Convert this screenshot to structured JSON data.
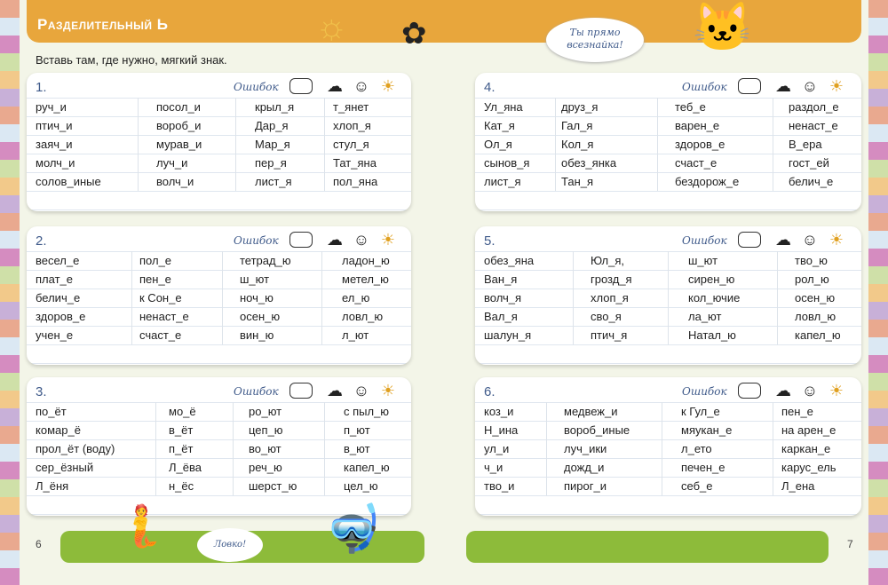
{
  "header": {
    "title": "Разделительный Ь",
    "instruction": "Вставь там, где нужно, мягкий знак.",
    "speech_top": "Ты прямо всезнайка!",
    "speech_bottom": "Ловко!"
  },
  "page_numbers": {
    "left": "6",
    "right": "7"
  },
  "error_label": "Ошибок",
  "colors": {
    "header": "#e8a63c",
    "footer": "#8dbb3a",
    "blank": "#7cc0d8"
  },
  "exercises": [
    {
      "number": "1.",
      "columns": [
        [
          "руч_и",
          "птич_и",
          "заяч_и",
          "молч_и",
          "солов_иные"
        ],
        [
          "посол_и",
          "вороб_и",
          "мурав_и",
          "луч_и",
          "волч_и"
        ],
        [
          "крыл_я",
          "Дар_я",
          "Мар_я",
          "пер_я",
          "лист_я"
        ],
        [
          "т_янет",
          "хлоп_я",
          "стул_я",
          "Тат_яна",
          "пол_яна"
        ]
      ]
    },
    {
      "number": "2.",
      "columns": [
        [
          "весел_е",
          "плат_е",
          "белич_е",
          "здоров_е",
          "учен_е"
        ],
        [
          "пол_е",
          "пен_е",
          "к Сон_е",
          "ненаст_е",
          "счаст_е"
        ],
        [
          "тетрад_ю",
          "ш_ют",
          "ноч_ю",
          "осен_ю",
          "вин_ю"
        ],
        [
          "ладон_ю",
          "метел_ю",
          "ел_ю",
          "ловл_ю",
          "л_ют"
        ]
      ]
    },
    {
      "number": "3.",
      "columns": [
        [
          "по_ёт",
          "комар_ё",
          "прол_ёт (воду)",
          "сер_ёзный",
          "Л_ёня"
        ],
        [
          "мо_ё",
          "в_ёт",
          "п_ёт",
          "Л_ёва",
          "н_ёс"
        ],
        [
          "ро_ют",
          "цеп_ю",
          "во_ют",
          "реч_ю",
          "шерст_ю"
        ],
        [
          "с пыл_ю",
          "п_ют",
          "в_ют",
          "капел_ю",
          "цел_ю"
        ]
      ]
    },
    {
      "number": "4.",
      "columns": [
        [
          "Ул_яна",
          "Кат_я",
          "Ол_я",
          "сынов_я",
          "лист_я"
        ],
        [
          "друз_я",
          "Гал_я",
          "Кол_я",
          "обез_янка",
          "Тан_я"
        ],
        [
          "теб_е",
          "варен_е",
          "здоров_е",
          "счаст_е",
          "бездорож_е"
        ],
        [
          "раздол_е",
          "ненаст_е",
          "В_ера",
          "гост_ей",
          "белич_е"
        ]
      ]
    },
    {
      "number": "5.",
      "columns": [
        [
          "обез_яна",
          "Ван_я",
          "волч_я",
          "Вал_я",
          "шалун_я"
        ],
        [
          "Юл_я,",
          "грозд_я",
          "хлоп_я",
          "сво_я",
          "птич_я"
        ],
        [
          "ш_ют",
          "сирен_ю",
          "кол_ючие",
          "ла_ют",
          "Натал_ю"
        ],
        [
          "тво_ю",
          "рол_ю",
          "осен_ю",
          "ловл_ю",
          "капел_ю"
        ]
      ]
    },
    {
      "number": "6.",
      "columns": [
        [
          "коз_и",
          "Н_ина",
          "ул_и",
          "ч_и",
          "тво_и"
        ],
        [
          "медвеж_и",
          "вороб_иные",
          "луч_ики",
          "дожд_и",
          "пирог_и"
        ],
        [
          "к Гул_е",
          "мяукан_е",
          "л_ето",
          "печен_е",
          "себ_е"
        ],
        [
          "пен_е",
          "на арен_е",
          "каркан_е",
          "карус_ель",
          "Л_ена"
        ]
      ]
    }
  ]
}
